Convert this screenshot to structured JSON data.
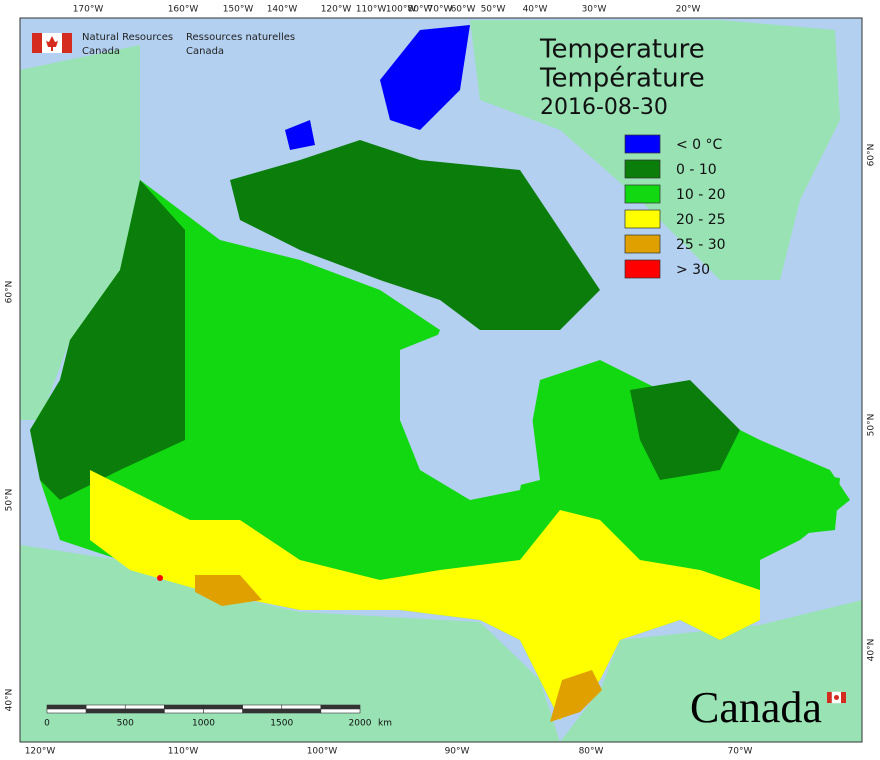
{
  "agency_en": [
    "Natural Resources",
    "Canada"
  ],
  "agency_fr": [
    "Ressources naturelles",
    "Canada"
  ],
  "title": [
    "Temperature",
    "Température"
  ],
  "date": "2016-08-30",
  "legend": [
    {
      "label": "< 0 °C",
      "color": "#0000ff"
    },
    {
      "label": "0 - 10",
      "color": "#0a7d0a"
    },
    {
      "label": "10 - 20",
      "color": "#12d812"
    },
    {
      "label": "20 - 25",
      "color": "#ffff00"
    },
    {
      "label": "25 - 30",
      "color": "#e0a000"
    },
    {
      "label": "> 30",
      "color": "#ff0000"
    }
  ],
  "top_labels": [
    "170°W",
    "160°W",
    "150°W",
    "140°W",
    "120°W",
    "110°W",
    "100°W",
    "80°W",
    "70°W",
    "60°W",
    "50°W",
    "40°W",
    "30°W",
    "20°W"
  ],
  "bottom_labels": [
    "120°W",
    "110°W",
    "100°W",
    "90°W",
    "80°W",
    "70°W"
  ],
  "left_labels": [
    "60°N",
    "50°N",
    "40°N"
  ],
  "right_labels": [
    "60°N",
    "50°N",
    "40°N"
  ],
  "scale_bar": {
    "labels": [
      "0",
      "500",
      "1000",
      "1500",
      "2000"
    ],
    "unit": "km"
  },
  "wordmark": "Canada"
}
